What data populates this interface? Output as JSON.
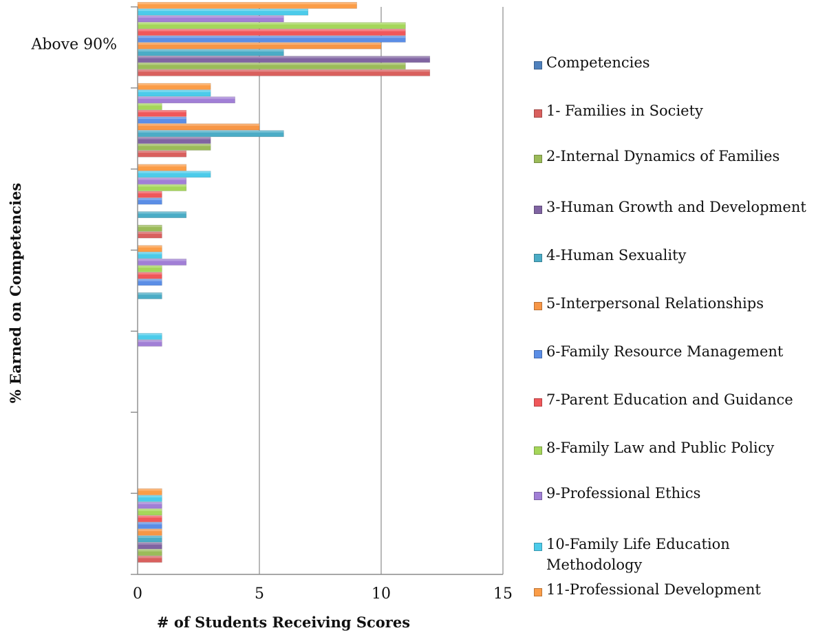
{
  "chart_data": {
    "type": "bar",
    "orientation": "horizontal",
    "xlabel": "# of Students Receiving Scores",
    "ylabel": "% Earned on Competencies",
    "xlim": [
      0,
      15
    ],
    "xticks": [
      0,
      5,
      10,
      15
    ],
    "grid": "vertical",
    "legend_position": "right",
    "categories": [
      "Above 90%",
      "",
      "",
      "",
      "",
      "",
      ""
    ],
    "series": [
      {
        "name": "Competencies",
        "color": "#4f81bd",
        "values": [
          0,
          0,
          0,
          0,
          0,
          0,
          0
        ]
      },
      {
        "name": "1- Families in Society",
        "color": "#d9605e",
        "values": [
          12,
          2,
          1,
          0,
          0,
          0,
          1
        ]
      },
      {
        "name": "2-Internal Dynamics of Families",
        "color": "#9bbb59",
        "values": [
          11,
          3,
          1,
          0,
          0,
          0,
          1
        ]
      },
      {
        "name": "3-Human Growth and Development",
        "color": "#8064a2",
        "values": [
          12,
          3,
          0,
          0,
          0,
          0,
          1
        ]
      },
      {
        "name": "4-Human Sexuality",
        "color": "#4bacc6",
        "values": [
          6,
          6,
          2,
          1,
          0,
          0,
          1
        ]
      },
      {
        "name": "5-Interpersonal Relationships",
        "color": "#f79646",
        "values": [
          10,
          5,
          0,
          0,
          0,
          0,
          1
        ]
      },
      {
        "name": "6-Family Resource Management",
        "color": "#5b8ee6",
        "values": [
          11,
          2,
          1,
          1,
          0,
          0,
          1
        ]
      },
      {
        "name": "7-Parent Education and Guidance",
        "color": "#f0575a",
        "values": [
          11,
          2,
          1,
          1,
          0,
          0,
          1
        ]
      },
      {
        "name": "8-Family Law and Public Policy",
        "color": "#a5d65a",
        "values": [
          11,
          1,
          2,
          1,
          0,
          0,
          1
        ]
      },
      {
        "name": "9-Professional Ethics",
        "color": "#a17fd6",
        "values": [
          6,
          4,
          2,
          2,
          1,
          0,
          1
        ]
      },
      {
        "name": "10-Family Life Education Methodology",
        "color": "#4ccbea",
        "values": [
          7,
          3,
          3,
          1,
          1,
          0,
          1
        ]
      },
      {
        "name": "11-Professional Development",
        "color": "#fb9d48",
        "values": [
          9,
          3,
          2,
          1,
          0,
          0,
          1
        ]
      }
    ]
  }
}
